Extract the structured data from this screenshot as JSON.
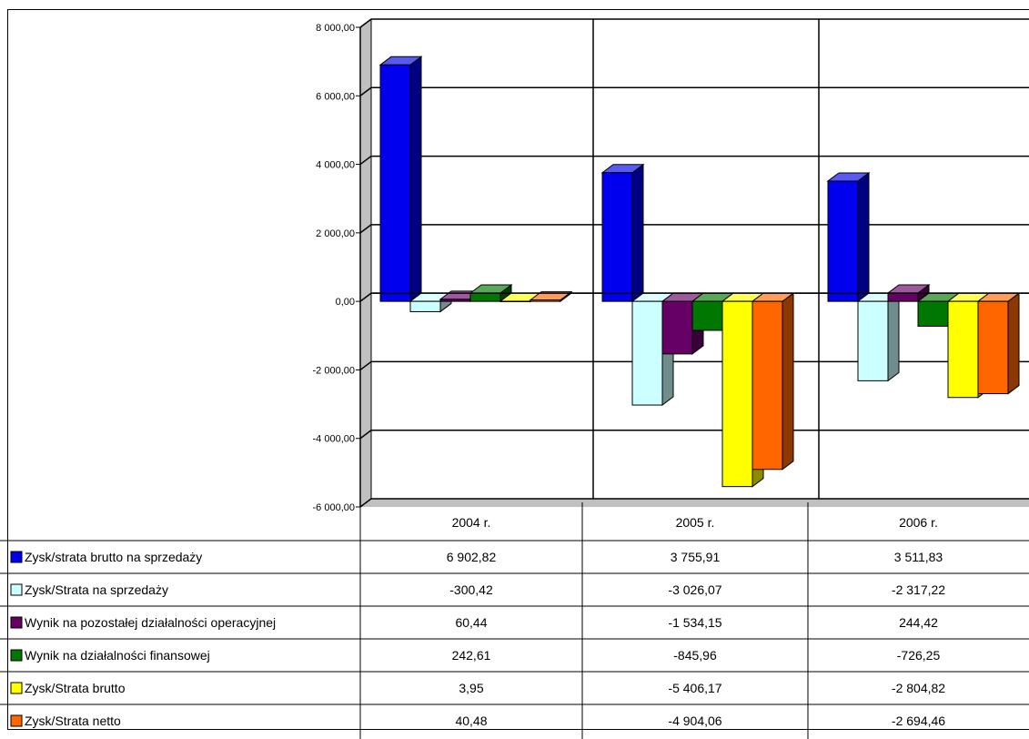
{
  "chart_data": {
    "type": "bar",
    "categories": [
      "2004 r.",
      "2005 r.",
      "2006 r."
    ],
    "ylim": [
      -6000,
      8000
    ],
    "yticks": [
      "8 000,00",
      "6 000,00",
      "4 000,00",
      "2 000,00",
      "0,00",
      "-2 000,00",
      "-4 000,00",
      "-6 000,00"
    ],
    "grid": true,
    "legend": "data-table-left",
    "series": [
      {
        "name": "Zysk/strata brutto na sprzedaży",
        "color": "#0000ee",
        "values": [
          6902.82,
          3755.91,
          3511.83
        ],
        "labels": [
          "6 902,82",
          "3 755,91",
          "3 511,83"
        ]
      },
      {
        "name": "Zysk/Strata na sprzedaży",
        "color": "#ccffff",
        "values": [
          -300.42,
          -3026.07,
          -2317.22
        ],
        "labels": [
          "-300,42",
          "-3 026,07",
          "-2 317,22"
        ]
      },
      {
        "name": "Wynik na pozostałej działalności operacyjnej",
        "color": "#660066",
        "values": [
          60.44,
          -1534.15,
          244.42
        ],
        "labels": [
          "60,44",
          "-1 534,15",
          "244,42"
        ]
      },
      {
        "name": "Wynik na działalności finansowej",
        "color": "#007700",
        "values": [
          242.61,
          -845.96,
          -726.25
        ],
        "labels": [
          "242,61",
          "-845,96",
          "-726,25"
        ]
      },
      {
        "name": "Zysk/Strata brutto",
        "color": "#ffff00",
        "values": [
          3.95,
          -5406.17,
          -2804.82
        ],
        "labels": [
          "3,95",
          "-5 406,17",
          "-2 804,82"
        ]
      },
      {
        "name": "Zysk/Strata netto",
        "color": "#ff6600",
        "values": [
          40.48,
          -4904.06,
          -2694.46
        ],
        "labels": [
          "40,48",
          "-4 904,06",
          "-2 694,46"
        ]
      }
    ]
  }
}
